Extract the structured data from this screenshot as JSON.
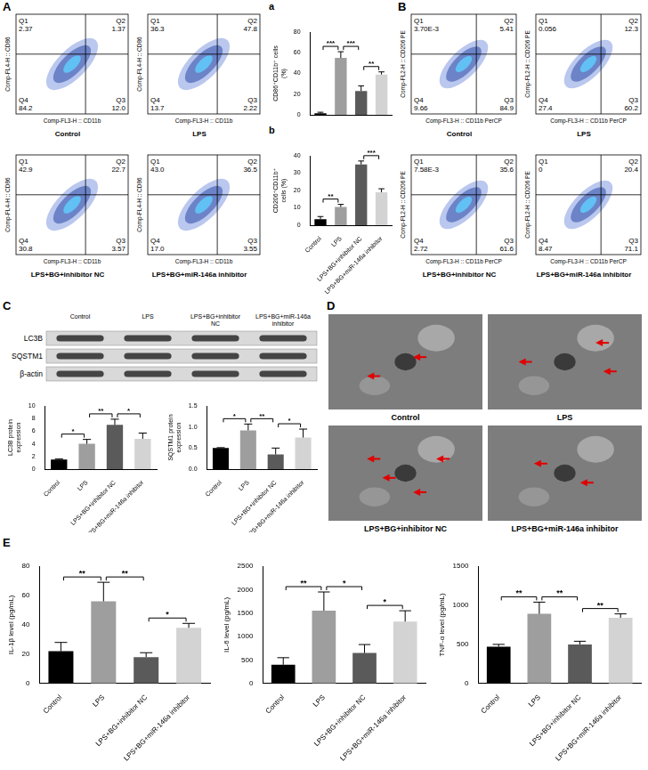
{
  "flow_A": {
    "panel": "A",
    "x_label": "Comp-FL3-H :: CD11b",
    "y_label": "Comp-FL4-H :: CD86",
    "plots": [
      {
        "sample": "Control",
        "quadrants": [
          {
            "name": "Q1",
            "value": "2.37"
          },
          {
            "name": "Q2",
            "value": "1.37"
          },
          {
            "name": "Q3",
            "value": "12.0"
          },
          {
            "name": "Q4",
            "value": "84.2"
          }
        ]
      },
      {
        "sample": "LPS",
        "quadrants": [
          {
            "name": "Q1",
            "value": "36.3"
          },
          {
            "name": "Q2",
            "value": "47.8"
          },
          {
            "name": "Q3",
            "value": "2.22"
          },
          {
            "name": "Q4",
            "value": "13.7"
          }
        ]
      },
      {
        "sample": "LPS+BG+inhibitor NC",
        "quadrants": [
          {
            "name": "Q1",
            "value": "42.9"
          },
          {
            "name": "Q2",
            "value": "22.7"
          },
          {
            "name": "Q3",
            "value": "3.57"
          },
          {
            "name": "Q4",
            "value": "30.8"
          }
        ]
      },
      {
        "sample": "LPS+BG+miR-146a inhibitor",
        "quadrants": [
          {
            "name": "Q1",
            "value": "43.0"
          },
          {
            "name": "Q2",
            "value": "36.5"
          },
          {
            "name": "Q3",
            "value": "3.55"
          },
          {
            "name": "Q4",
            "value": "17.0"
          }
        ]
      }
    ]
  },
  "flow_B": {
    "panel": "B",
    "x_label": "Comp-FL3-H :: CD11b PerCP",
    "y_label": "Comp-FL2-H :: CD206 PE",
    "plots": [
      {
        "sample": "Control",
        "quadrants": [
          {
            "name": "Q1",
            "value": "3.70E-3"
          },
          {
            "name": "Q2",
            "value": "5.41"
          },
          {
            "name": "Q3",
            "value": "84.9"
          },
          {
            "name": "Q4",
            "value": "9.66"
          }
        ]
      },
      {
        "sample": "LPS",
        "quadrants": [
          {
            "name": "Q1",
            "value": "0.056"
          },
          {
            "name": "Q2",
            "value": "12.3"
          },
          {
            "name": "Q3",
            "value": "60.2"
          },
          {
            "name": "Q4",
            "value": "27.4"
          }
        ]
      },
      {
        "sample": "LPS+BG+inhibitor NC",
        "quadrants": [
          {
            "name": "Q1",
            "value": "7.58E-3"
          },
          {
            "name": "Q2",
            "value": "35.6"
          },
          {
            "name": "Q3",
            "value": "61.6"
          },
          {
            "name": "Q4",
            "value": "2.72"
          }
        ]
      },
      {
        "sample": "LPS+BG+miR-146a inhibitor",
        "quadrants": [
          {
            "name": "Q1",
            "value": "0"
          },
          {
            "name": "Q2",
            "value": "20.4"
          },
          {
            "name": "Q3",
            "value": "71.1"
          },
          {
            "name": "Q4",
            "value": "8.47"
          }
        ]
      }
    ]
  },
  "blot": {
    "panel": "C",
    "lanes": [
      "Control",
      "LPS",
      "LPS+BG+inhibitor NC",
      "LPS+BG+miR-146a inhibitor"
    ],
    "bands": [
      "LC3B",
      "SQSTM1",
      "β-actin"
    ]
  },
  "tem": {
    "panel": "D",
    "images": [
      "Control",
      "LPS",
      "LPS+BG+inhibitor NC",
      "LPS+BG+miR-146a inhibitor"
    ]
  },
  "chart_data": [
    {
      "type": "bar",
      "panel": "a",
      "y_label": "CD86⁺CD11b⁺ cells (%)",
      "categories": [
        "Control",
        "LPS",
        "LPS+BG+inhibitor NC",
        "LPS+BG+miR-146a inhibitor"
      ],
      "values": [
        1.5,
        55,
        23,
        39
      ],
      "errors": [
        1,
        6,
        5,
        2.5
      ],
      "colors": [
        "#000000",
        "#9e9e9e",
        "#5a5a5a",
        "#d3d3d3"
      ],
      "ylim": [
        0,
        80
      ],
      "yticks": [
        0,
        20,
        40,
        60,
        80
      ],
      "grid": false,
      "tick_labels": "y",
      "comparisons": [
        {
          "between": [
            "Control",
            "LPS"
          ],
          "label": "***"
        },
        {
          "between": [
            "LPS",
            "LPS+BG+inhibitor NC"
          ],
          "label": "***"
        },
        {
          "between": [
            "LPS+BG+inhibitor NC",
            "LPS+BG+miR-146a inhibitor"
          ],
          "label": "**"
        }
      ]
    },
    {
      "type": "bar",
      "panel": "b",
      "y_label": "CD206⁺CD11b⁺ cells (%)",
      "categories": [
        "Control",
        "LPS",
        "LPS+BG+inhibitor NC",
        "LPS+BG+miR-146a inhibitor"
      ],
      "values": [
        3.5,
        10.5,
        35,
        19
      ],
      "errors": [
        1.5,
        1.5,
        2,
        2
      ],
      "colors": [
        "#000000",
        "#9e9e9e",
        "#5a5a5a",
        "#d3d3d3"
      ],
      "ylim": [
        0,
        40
      ],
      "yticks": [
        0,
        10,
        20,
        30,
        40
      ],
      "grid": false,
      "comparisons": [
        {
          "between": [
            "Control",
            "LPS"
          ],
          "label": "**"
        },
        {
          "between": [
            "LPS+BG+inhibitor NC",
            "LPS+BG+miR-146a inhibitor"
          ],
          "label": "***"
        }
      ]
    },
    {
      "type": "bar",
      "y_label": "LC3B protein expression",
      "categories": [
        "Control",
        "LPS",
        "LPS+BG+inhibitor NC",
        "LPS+BG+miR-146a inhibitor"
      ],
      "values": [
        1.5,
        4,
        7,
        4.8
      ],
      "errors": [
        0.1,
        0.7,
        0.9,
        0.9
      ],
      "colors": [
        "#000000",
        "#9e9e9e",
        "#5a5a5a",
        "#d3d3d3"
      ],
      "ylim": [
        0,
        10
      ],
      "yticks": [
        0,
        2,
        4,
        6,
        8,
        10
      ],
      "grid": false,
      "comparisons": [
        {
          "between": [
            "Control",
            "LPS"
          ],
          "label": "*"
        },
        {
          "between": [
            "LPS",
            "LPS+BG+inhibitor NC"
          ],
          "label": "**"
        },
        {
          "between": [
            "LPS+BG+inhibitor NC",
            "LPS+BG+miR-146a inhibitor"
          ],
          "label": "*"
        }
      ]
    },
    {
      "type": "bar",
      "y_label": "SQSTM1 protein expression",
      "categories": [
        "Control",
        "LPS",
        "LPS+BG+inhibitor NC",
        "LPS+BG+miR-146a inhibitor"
      ],
      "values": [
        0.5,
        0.92,
        0.35,
        0.75
      ],
      "errors": [
        0.01,
        0.15,
        0.15,
        0.2
      ],
      "colors": [
        "#000000",
        "#9e9e9e",
        "#5a5a5a",
        "#d3d3d3"
      ],
      "ylim": [
        0,
        1.5
      ],
      "yticks": [
        {
          "value": 0,
          "label": "0.0"
        },
        0.5,
        {
          "value": 1,
          "label": "1.0"
        },
        1.5
      ],
      "grid": false,
      "comparisons": [
        {
          "between": [
            "Control",
            "LPS"
          ],
          "label": "*"
        },
        {
          "between": [
            "LPS",
            "LPS+BG+inhibitor NC"
          ],
          "label": "**"
        },
        {
          "between": [
            "LPS+BG+inhibitor NC",
            "LPS+BG+miR-146a inhibitor"
          ],
          "label": "*"
        }
      ]
    },
    {
      "type": "bar",
      "panel": "E",
      "y_label": "IL-1β level (pg/mL)",
      "categories": [
        "Control",
        "LPS",
        "LPS+BG+inhibitor NC",
        "LPS+BG+miR-146a inhibitor"
      ],
      "values": [
        22,
        56,
        18,
        38
      ],
      "errors": [
        6,
        13,
        3,
        3
      ],
      "colors": [
        "#000000",
        "#9e9e9e",
        "#5a5a5a",
        "#d3d3d3"
      ],
      "ylim": [
        0,
        80
      ],
      "yticks": [
        0,
        20,
        40,
        60,
        80
      ],
      "grid": false,
      "comparisons": [
        {
          "between": [
            "Control",
            "LPS"
          ],
          "label": "**"
        },
        {
          "between": [
            "LPS",
            "LPS+BG+inhibitor NC"
          ],
          "label": "**"
        },
        {
          "between": [
            "LPS+BG+inhibitor NC",
            "LPS+BG+miR-146a inhibitor"
          ],
          "label": "*"
        }
      ]
    },
    {
      "type": "bar",
      "y_label": "IL-6 level (pg/mL)",
      "categories": [
        "Control",
        "LPS",
        "LPS+BG+inhibitor NC",
        "LPS+BG+miR-146a inhibitor"
      ],
      "values": [
        400,
        1550,
        650,
        1320
      ],
      "errors": [
        150,
        400,
        180,
        230
      ],
      "colors": [
        "#000000",
        "#9e9e9e",
        "#5a5a5a",
        "#d3d3d3"
      ],
      "ylim": [
        0,
        2500
      ],
      "yticks": [
        0,
        500,
        1000,
        1500,
        2000,
        2500
      ],
      "grid": false,
      "comparisons": [
        {
          "between": [
            "Control",
            "LPS"
          ],
          "label": "**"
        },
        {
          "between": [
            "LPS",
            "LPS+BG+inhibitor NC"
          ],
          "label": "*"
        },
        {
          "between": [
            "LPS+BG+inhibitor NC",
            "LPS+BG+miR-146a inhibitor"
          ],
          "label": "*"
        }
      ]
    },
    {
      "type": "bar",
      "y_label": "TNF-α level (pg/mL)",
      "categories": [
        "Control",
        "LPS",
        "LPS+BG+inhibitor NC",
        "LPS+BG+miR-146a inhibitor"
      ],
      "values": [
        470,
        890,
        500,
        840
      ],
      "errors": [
        30,
        150,
        40,
        50
      ],
      "colors": [
        "#000000",
        "#9e9e9e",
        "#5a5a5a",
        "#d3d3d3"
      ],
      "ylim": [
        0,
        1500
      ],
      "yticks": [
        0,
        500,
        1000,
        1500
      ],
      "grid": false,
      "comparisons": [
        {
          "between": [
            "Control",
            "LPS"
          ],
          "label": "**"
        },
        {
          "between": [
            "LPS",
            "LPS+BG+inhibitor NC"
          ],
          "label": "**"
        },
        {
          "between": [
            "LPS+BG+inhibitor NC",
            "LPS+BG+miR-146a inhibitor"
          ],
          "label": "**"
        }
      ]
    }
  ]
}
